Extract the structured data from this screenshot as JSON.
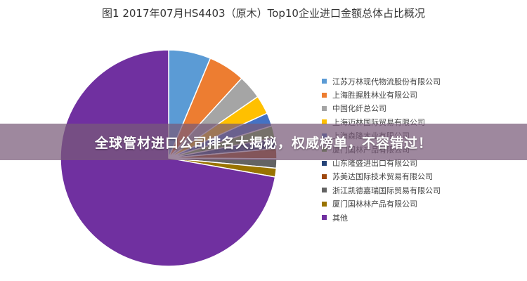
{
  "chart_data": {
    "type": "pie",
    "title": "图1 2017年07月HS4403（原木）Top10企业进口金额总体占比概况",
    "legend_position": "right",
    "series": [
      {
        "name": "江苏万林现代物流股份有限公司",
        "value": 6.3,
        "color": "#5b9bd5"
      },
      {
        "name": "上海胜握胜林业有限公司",
        "value": 5.5,
        "color": "#ed7d31"
      },
      {
        "name": "中国化纤总公司",
        "value": 3.6,
        "color": "#a5a5a5"
      },
      {
        "name": "上海迈林国际贸易有限公司",
        "value": 2.8,
        "color": "#ffc000"
      },
      {
        "name": "上海森隆木业有限公司",
        "value": 2.0,
        "color": "#4472c4"
      },
      {
        "name": "厦门国林产品有限公司",
        "value": 1.8,
        "color": "#70ad47"
      },
      {
        "name": "山东隆盛进出口有限公司",
        "value": 1.6,
        "color": "#264478"
      },
      {
        "name": "苏美达国际技术贸易有限公司",
        "value": 1.5,
        "color": "#9e480e"
      },
      {
        "name": "浙江凯德嘉瑞国际贸易有限公司",
        "value": 1.4,
        "color": "#636363"
      },
      {
        "name": "厦门国林林产品有限公司",
        "value": 1.3,
        "color": "#997300"
      },
      {
        "name": "其他",
        "value": 72.2,
        "color": "#7030a0"
      }
    ]
  },
  "banner": {
    "text": "全球管材进口公司排名大揭秘，权威榜单，不容错过！"
  }
}
